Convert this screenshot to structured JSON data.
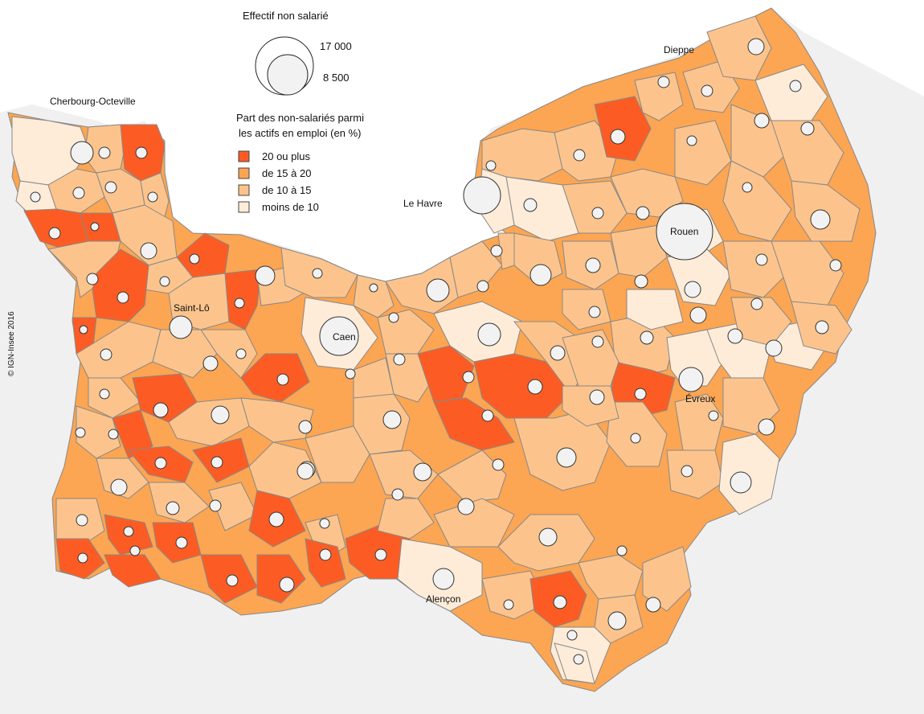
{
  "legend": {
    "size_title": "Effectif non salarié",
    "size_large": "17 000",
    "size_small": "8 500",
    "class_title_line1": "Part des non-salariés parmi",
    "class_title_line2": "les actifs en emploi (en %)",
    "classes": [
      {
        "label": "20 ou plus",
        "color": "#fc5c24"
      },
      {
        "label": "de 15 à 20",
        "color": "#fca552"
      },
      {
        "label": "de 10 à 15",
        "color": "#fcc48c"
      },
      {
        "label": "moins de 10",
        "color": "#feecd8"
      }
    ]
  },
  "cities": {
    "cherbourg": "Cherbourg-Octeville",
    "dieppe": "Dieppe",
    "le_havre": "Le Havre",
    "rouen": "Rouen",
    "saint_lo": "Saint-Lô",
    "caen": "Caen",
    "evreux": "Évreux",
    "alencon": "Alençon"
  },
  "credit": "© IGN-Insee 2016",
  "colors": {
    "sea": "#ffffff",
    "land_outside": "#f0f0f0",
    "bubble_fill": "#f2f2f2",
    "boundary": "#888888"
  }
}
